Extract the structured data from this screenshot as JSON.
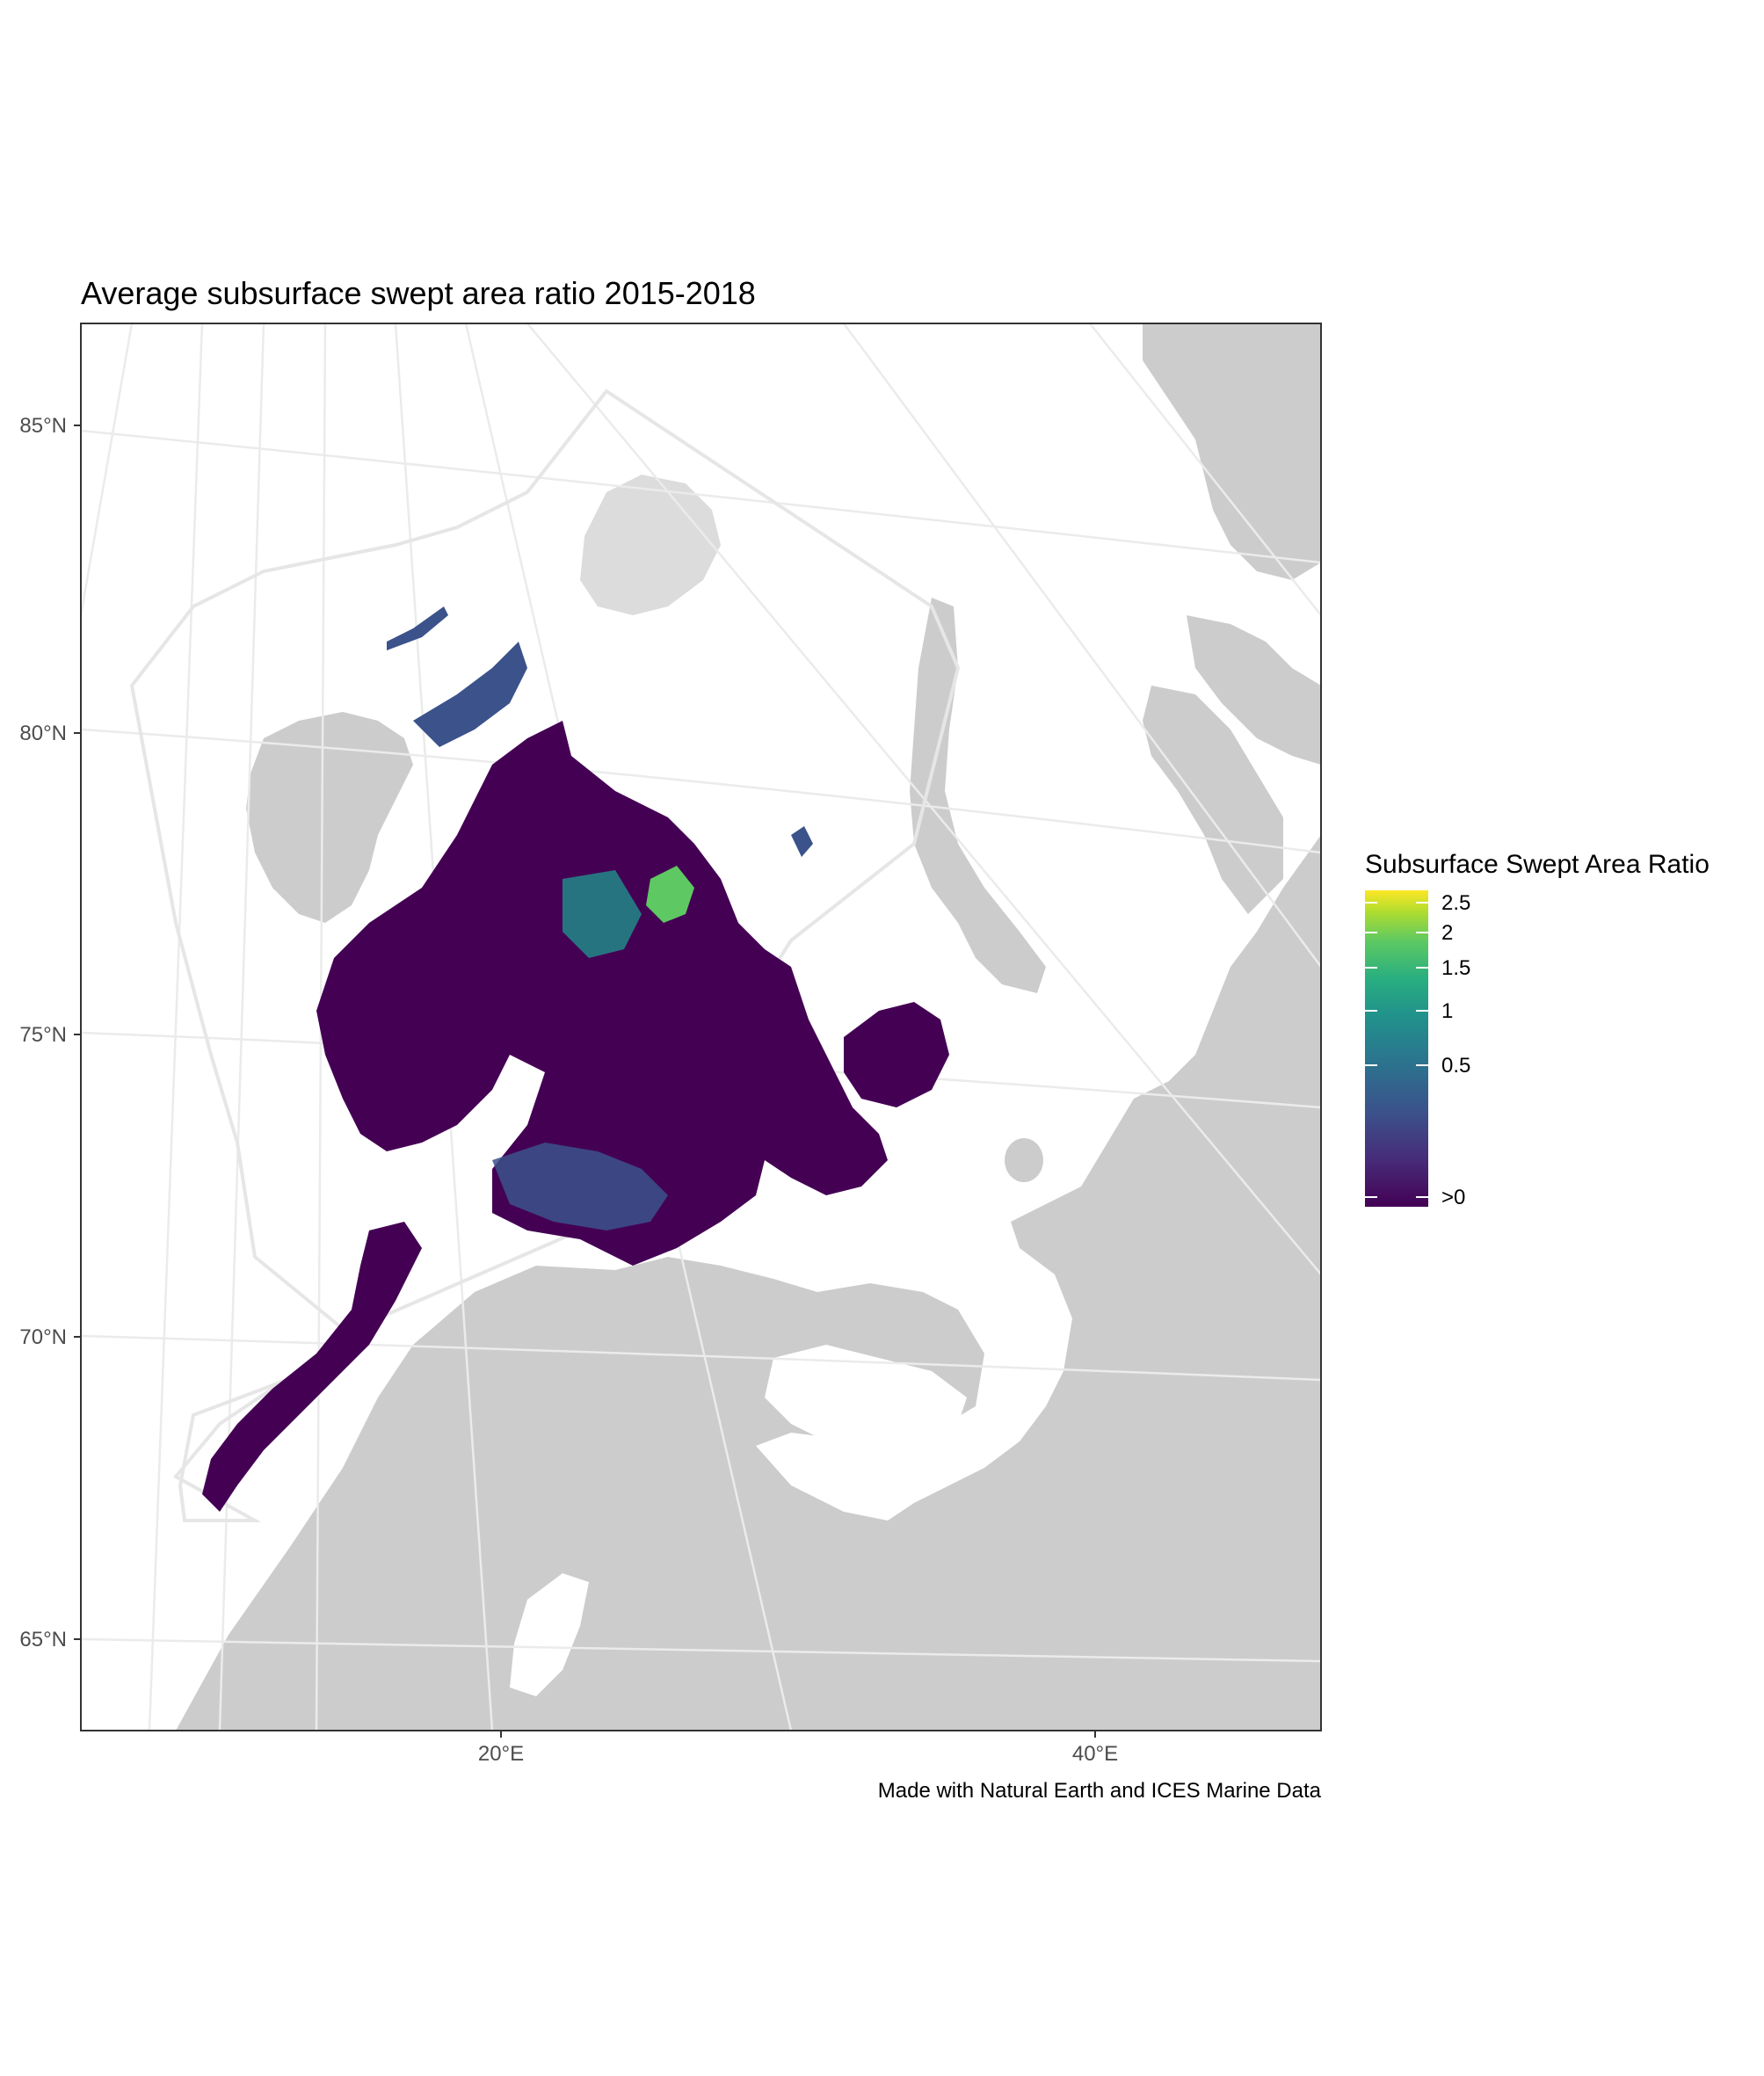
{
  "title": "Average subsurface swept area ratio 2015-2018",
  "caption": "Made with Natural Earth and ICES Marine Data",
  "axes": {
    "y_ticks": [
      "85°N",
      "80°N",
      "75°N",
      "70°N",
      "65°N"
    ],
    "x_ticks": [
      "20°E",
      "40°E"
    ]
  },
  "legend": {
    "title": "Subsurface Swept Area Ratio",
    "labels": [
      "2.5",
      "2",
      "1.5",
      "1",
      "0.5",
      ">0"
    ],
    "colors": [
      "#fde725",
      "#b8de29",
      "#5ec962",
      "#21918c",
      "#3b528b",
      "#440154"
    ]
  },
  "colors": {
    "land": "#cccccc",
    "shelf": "#e3e3e3",
    "graticule": "#ebebeb",
    "boundary": "#e6e6e6",
    "data_low": "#440154",
    "data_mid": "#3b528b",
    "data_high": "#5ec962"
  }
}
